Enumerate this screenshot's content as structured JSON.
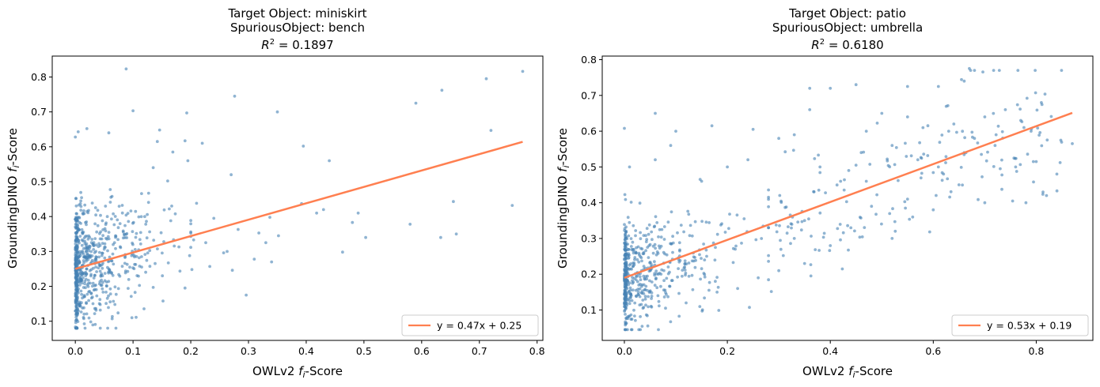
{
  "colors": {
    "scatter": "#4682b4",
    "fit": "#ff7f50",
    "axis": "#000000",
    "legend_border": "#cccccc"
  },
  "chart_data": [
    {
      "type": "scatter",
      "title_lines": [
        "Target Object: miniskirt",
        "SpuriousObject: bench"
      ],
      "r2_label": "R",
      "r2_exp": "2",
      "r2_value": " = 0.1897",
      "xlabel_pre": "OWLv2 ",
      "xlabel_var": "f",
      "xlabel_sub": "i",
      "xlabel_post": "-Score",
      "ylabel_pre": "GroundingDINO ",
      "ylabel_var": "f",
      "ylabel_sub": "i",
      "ylabel_post": "-Score",
      "xlim": [
        -0.04,
        0.81
      ],
      "ylim": [
        0.045,
        0.86
      ],
      "xticks": [
        0.0,
        0.1,
        0.2,
        0.3,
        0.4,
        0.5,
        0.6,
        0.7,
        0.8
      ],
      "xtick_labels": [
        "0.0",
        "0.1",
        "0.2",
        "0.3",
        "0.4",
        "0.5",
        "0.6",
        "0.7",
        "0.8"
      ],
      "yticks": [
        0.1,
        0.2,
        0.3,
        0.4,
        0.5,
        0.6,
        0.7,
        0.8
      ],
      "ytick_labels": [
        "0.1",
        "0.2",
        "0.3",
        "0.4",
        "0.5",
        "0.6",
        "0.7",
        "0.8"
      ],
      "fit": {
        "slope": 0.47,
        "intercept": 0.25,
        "x_range": [
          0.0,
          0.775
        ],
        "label": "y = 0.47x + 0.25"
      },
      "legend_position": "lower-right",
      "points": [
        [
          0.088,
          0.823
        ],
        [
          0.775,
          0.816
        ],
        [
          0.712,
          0.795
        ],
        [
          0.635,
          0.762
        ],
        [
          0.276,
          0.745
        ],
        [
          0.59,
          0.725
        ],
        [
          0.1,
          0.703
        ],
        [
          0.35,
          0.7
        ],
        [
          0.193,
          0.697
        ],
        [
          0.72,
          0.647
        ],
        [
          0.146,
          0.648
        ],
        [
          0.058,
          0.64
        ],
        [
          0.02,
          0.652
        ],
        [
          0.005,
          0.643
        ],
        [
          0.0,
          0.628
        ],
        [
          0.757,
          0.432
        ],
        [
          0.633,
          0.34
        ],
        [
          0.66,
          0.35
        ],
        [
          0.655,
          0.443
        ],
        [
          0.49,
          0.41
        ],
        [
          0.503,
          0.34
        ],
        [
          0.48,
          0.383
        ],
        [
          0.463,
          0.298
        ],
        [
          0.44,
          0.56
        ],
        [
          0.395,
          0.602
        ],
        [
          0.43,
          0.42
        ],
        [
          0.418,
          0.41
        ],
        [
          0.392,
          0.437
        ],
        [
          0.34,
          0.27
        ],
        [
          0.33,
          0.325
        ],
        [
          0.318,
          0.353
        ],
        [
          0.31,
          0.278
        ],
        [
          0.296,
          0.175
        ],
        [
          0.27,
          0.52
        ],
        [
          0.282,
          0.363
        ],
        [
          0.263,
          0.3
        ],
        [
          0.24,
          0.395
        ],
        [
          0.22,
          0.61
        ],
        [
          0.195,
          0.56
        ],
        [
          0.19,
          0.617
        ],
        [
          0.21,
          0.438
        ],
        [
          0.205,
          0.333
        ],
        [
          0.198,
          0.288
        ],
        [
          0.202,
          0.248
        ],
        [
          0.19,
          0.195
        ],
        [
          0.169,
          0.585
        ],
        [
          0.16,
          0.502
        ],
        [
          0.167,
          0.43
        ],
        [
          0.142,
          0.615
        ],
        [
          0.135,
          0.54
        ],
        [
          0.152,
          0.158
        ],
        [
          0.098,
          0.11
        ],
        [
          0.58,
          0.378
        ],
        [
          0.352,
          0.345
        ],
        [
          0.337,
          0.398
        ],
        [
          0.272,
          0.246
        ],
        [
          0.226,
          0.325
        ],
        [
          0.233,
          0.257
        ],
        [
          0.257,
          0.296
        ],
        [
          0.127,
          0.467
        ],
        [
          0.122,
          0.378
        ]
      ],
      "cluster": {
        "seed": 7,
        "n": 720,
        "x_decay": 0.052,
        "x_max": 0.2,
        "slope": 0.47,
        "intercept": 0.25,
        "noise": 0.085,
        "y_min": 0.08,
        "y_max": 0.66,
        "zero_frac": 0.3
      }
    },
    {
      "type": "scatter",
      "title_lines": [
        "Target Object: patio",
        "SpuriousObject: umbrella"
      ],
      "r2_label": "R",
      "r2_exp": "2",
      "r2_value": " = 0.6180",
      "xlabel_pre": "OWLv2 ",
      "xlabel_var": "f",
      "xlabel_sub": "i",
      "xlabel_post": "-Score",
      "ylabel_pre": "GroundingDINO ",
      "ylabel_var": "f",
      "ylabel_sub": "i",
      "ylabel_post": "-Score",
      "xlim": [
        -0.043,
        0.91
      ],
      "ylim": [
        0.015,
        0.81
      ],
      "xticks": [
        0.0,
        0.2,
        0.4,
        0.6,
        0.8
      ],
      "xtick_labels": [
        "0.0",
        "0.2",
        "0.4",
        "0.6",
        "0.8"
      ],
      "yticks": [
        0.1,
        0.2,
        0.3,
        0.4,
        0.5,
        0.6,
        0.7,
        0.8
      ],
      "ytick_labels": [
        "0.1",
        "0.2",
        "0.3",
        "0.4",
        "0.5",
        "0.6",
        "0.7",
        "0.8"
      ],
      "fit": {
        "slope": 0.53,
        "intercept": 0.19,
        "x_range": [
          0.0,
          0.87
        ],
        "label": "y = 0.53x + 0.19"
      },
      "legend_position": "lower-right",
      "points": [
        [
          0.67,
          0.775
        ],
        [
          0.68,
          0.77
        ],
        [
          0.66,
          0.74
        ],
        [
          0.61,
          0.725
        ],
        [
          0.55,
          0.725
        ],
        [
          0.45,
          0.73
        ],
        [
          0.36,
          0.72
        ],
        [
          0.4,
          0.72
        ],
        [
          0.0,
          0.608
        ],
        [
          0.06,
          0.65
        ],
        [
          0.17,
          0.615
        ],
        [
          0.25,
          0.605
        ],
        [
          0.3,
          0.58
        ],
        [
          0.33,
          0.59
        ],
        [
          0.36,
          0.66
        ],
        [
          0.47,
          0.6
        ],
        [
          0.5,
          0.65
        ],
        [
          0.55,
          0.64
        ],
        [
          0.58,
          0.61
        ],
        [
          0.63,
          0.6
        ],
        [
          0.7,
          0.64
        ],
        [
          0.74,
          0.66
        ],
        [
          0.77,
          0.63
        ],
        [
          0.81,
          0.68
        ],
        [
          0.79,
          0.6
        ],
        [
          0.87,
          0.565
        ],
        [
          0.84,
          0.48
        ],
        [
          0.82,
          0.42
        ],
        [
          0.8,
          0.515
        ],
        [
          0.78,
          0.4
        ],
        [
          0.73,
          0.495
        ],
        [
          0.7,
          0.4
        ],
        [
          0.65,
          0.45
        ],
        [
          0.6,
          0.38
        ],
        [
          0.56,
          0.36
        ],
        [
          0.52,
          0.3
        ],
        [
          0.48,
          0.39
        ],
        [
          0.44,
          0.33
        ],
        [
          0.4,
          0.28
        ],
        [
          0.35,
          0.23
        ],
        [
          0.3,
          0.21
        ],
        [
          0.26,
          0.19
        ],
        [
          0.22,
          0.16
        ],
        [
          0.18,
          0.15
        ],
        [
          0.12,
          0.12
        ],
        [
          0.08,
          0.105
        ],
        [
          0.45,
          0.505
        ],
        [
          0.42,
          0.46
        ],
        [
          0.38,
          0.5
        ],
        [
          0.33,
          0.3
        ],
        [
          0.28,
          0.33
        ],
        [
          0.24,
          0.52
        ],
        [
          0.2,
          0.5
        ],
        [
          0.15,
          0.46
        ],
        [
          0.1,
          0.6
        ],
        [
          0.09,
          0.56
        ],
        [
          0.52,
          0.56
        ],
        [
          0.57,
          0.52
        ],
        [
          0.62,
          0.48
        ],
        [
          0.66,
          0.54
        ],
        [
          0.72,
          0.56
        ],
        [
          0.76,
          0.5
        ],
        [
          0.06,
          0.52
        ],
        [
          0.01,
          0.5
        ],
        [
          0.35,
          0.35
        ],
        [
          0.47,
          0.46
        ],
        [
          0.55,
          0.41
        ],
        [
          0.61,
          0.5
        ],
        [
          0.64,
          0.62
        ],
        [
          0.68,
          0.58
        ]
      ],
      "cluster": {
        "seed": 11,
        "n": 560,
        "x_decay": 0.062,
        "x_max": 0.28,
        "slope": 0.53,
        "intercept": 0.19,
        "noise": 0.075,
        "y_min": 0.045,
        "y_max": 0.62,
        "zero_frac": 0.3
      },
      "mid_cluster": {
        "seed": 23,
        "n": 170,
        "x_from": 0.28,
        "x_to": 0.85,
        "slope": 0.53,
        "intercept": 0.19,
        "noise": 0.09,
        "y_min": 0.15,
        "y_max": 0.77
      }
    }
  ]
}
